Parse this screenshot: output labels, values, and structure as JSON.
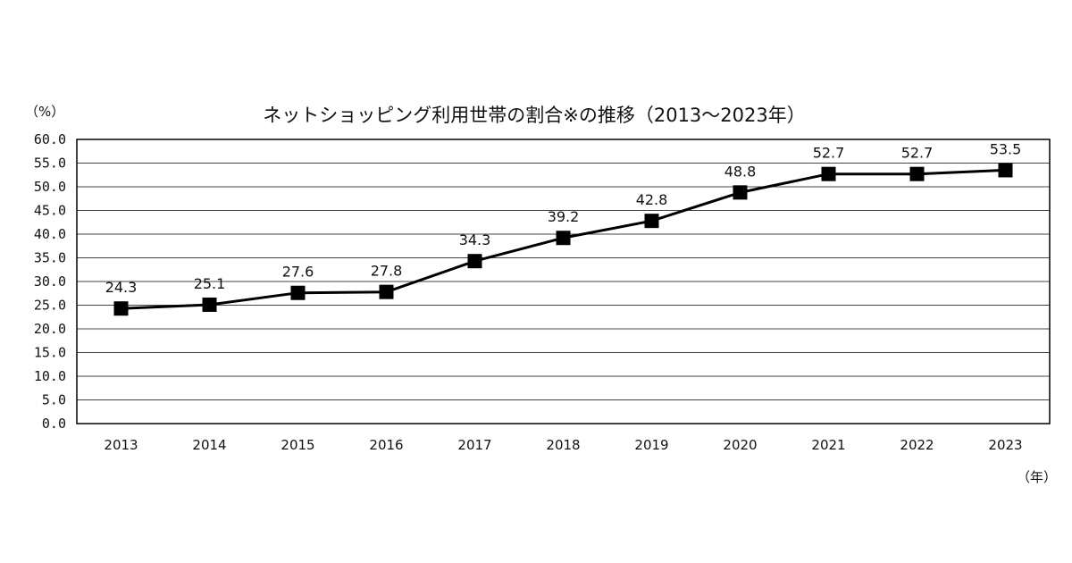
{
  "chart_data": {
    "type": "line",
    "title": "ネットショッピング利用世帯の割合※の推移（2013～2023年）",
    "ylabel": "（%）",
    "xlabel": "（年）",
    "categories": [
      "2013",
      "2014",
      "2015",
      "2016",
      "2017",
      "2018",
      "2019",
      "2020",
      "2021",
      "2022",
      "2023"
    ],
    "series": [
      {
        "values": [
          24.3,
          25.1,
          27.6,
          27.8,
          34.3,
          39.2,
          42.8,
          48.8,
          52.7,
          52.7,
          53.5
        ]
      }
    ],
    "data_labels": [
      "24.3",
      "25.1",
      "27.6",
      "27.8",
      "34.3",
      "39.2",
      "42.8",
      "48.8",
      "52.7",
      "52.7",
      "53.5"
    ],
    "ylim": [
      0,
      60
    ],
    "yticks": [
      0,
      5,
      10,
      15,
      20,
      25,
      30,
      35,
      40,
      45,
      50,
      55,
      60
    ],
    "ytick_labels": [
      "0.0",
      "5.0",
      "10.0",
      "15.0",
      "20.0",
      "25.0",
      "30.0",
      "35.0",
      "40.0",
      "45.0",
      "50.0",
      "55.0",
      "60.0"
    ],
    "grid": true,
    "legend": "none",
    "colors": {
      "line": "#000000",
      "marker": "#000000",
      "grid": "#444444",
      "background": "#ffffff"
    }
  }
}
